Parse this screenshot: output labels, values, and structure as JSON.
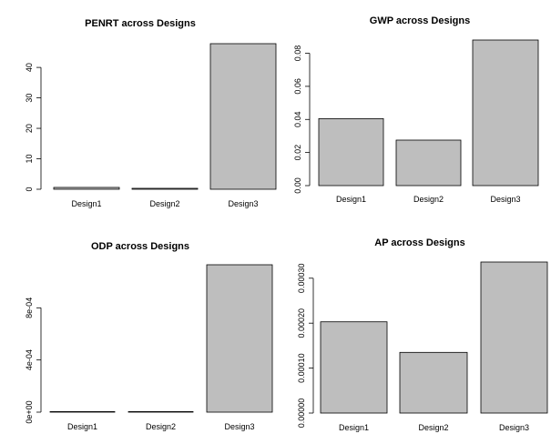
{
  "chart_data": [
    {
      "type": "bar",
      "title": "PENRT across Designs",
      "categories": [
        "Design1",
        "Design2",
        "Design3"
      ],
      "values": [
        0.6,
        0.3,
        47.8
      ],
      "yticks": [
        0,
        10,
        20,
        30,
        40
      ],
      "ytick_labels": [
        "0",
        "10",
        "20",
        "30",
        "40"
      ],
      "ylim": [
        0,
        47.8
      ],
      "xlabel": "",
      "ylabel": "",
      "grid": false,
      "bar_color": "#bebebe"
    },
    {
      "type": "bar",
      "title": "GWP across Designs",
      "categories": [
        "Design1",
        "Design2",
        "Design3"
      ],
      "values": [
        0.0405,
        0.0275,
        0.088
      ],
      "yticks": [
        0,
        0.02,
        0.04,
        0.06,
        0.08
      ],
      "ytick_labels": [
        "0.00",
        "0.02",
        "0.04",
        "0.06",
        "0.08"
      ],
      "ylim": [
        0,
        0.088
      ],
      "xlabel": "",
      "ylabel": "",
      "grid": false,
      "bar_color": "#bebebe"
    },
    {
      "type": "bar",
      "title": "ODP across Designs",
      "categories": [
        "Design1",
        "Design2",
        "Design3"
      ],
      "values": [
        5e-07,
        5e-07,
        0.00113
      ],
      "yticks": [
        0,
        0.0004,
        0.0008
      ],
      "ytick_labels": [
        "0e+00",
        "4e-04",
        "8e-04"
      ],
      "ylim": [
        0,
        0.00113
      ],
      "xlabel": "",
      "ylabel": "",
      "grid": false,
      "bar_color": "#bebebe"
    },
    {
      "type": "bar",
      "title": "AP across Designs",
      "categories": [
        "Design1",
        "Design2",
        "Design3"
      ],
      "values": [
        0.000203,
        0.000135,
        0.000336
      ],
      "yticks": [
        0,
        0.0001,
        0.0002,
        0.0003
      ],
      "ytick_labels": [
        "0.00000",
        "0.00010",
        "0.00020",
        "0.00030"
      ],
      "ylim": [
        0,
        0.000336
      ],
      "xlabel": "",
      "ylabel": "",
      "grid": false,
      "bar_color": "#bebebe"
    }
  ]
}
